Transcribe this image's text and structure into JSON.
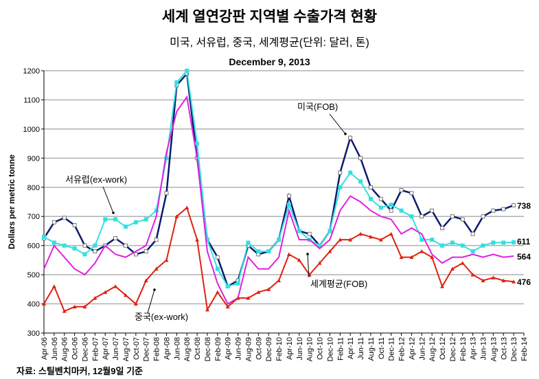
{
  "chart_data": {
    "type": "line",
    "title": "세계 열연강판 지역별 수출가격 현황",
    "subtitle": "미국, 서유럽, 중국, 세계평균(단위: 달러, 톤)",
    "date": "December 9, 2013",
    "ylabel": "Dollars per metric tonne",
    "xlabel": "",
    "ylim": [
      300,
      1200
    ],
    "yticks": [
      300,
      400,
      500,
      600,
      700,
      800,
      900,
      1000,
      1100,
      1200
    ],
    "xticks": [
      "Apr-06",
      "Jun-06",
      "Aug-06",
      "Oct-06",
      "Dec-06",
      "Feb-07",
      "Apr-07",
      "Jun-07",
      "Aug-07",
      "Oct-07",
      "Dec-07",
      "Feb-08",
      "Apr-08",
      "Jun-08",
      "Aug-08",
      "Oct-08",
      "Dec-08",
      "Feb-09",
      "Apr-09",
      "Jun-09",
      "Aug-09",
      "Oct-09",
      "Dec-09",
      "Feb-10",
      "Apr-10",
      "Jun-10",
      "Aug-10",
      "Oct-10",
      "Dec-10",
      "Feb-11",
      "Apr-11",
      "Jun-11",
      "Aug-11",
      "Oct-11",
      "Dec-11",
      "Feb-12",
      "Apr-12",
      "Jun-12",
      "Aug-12",
      "Oct-12",
      "Dec-12",
      "Feb-13",
      "Apr-13",
      "Jun-13",
      "Aug-13",
      "Oct-13",
      "Dec-13",
      "Feb-14"
    ],
    "grid": true,
    "series": [
      {
        "name": "미국(FOB)",
        "color": "#0a1a6e",
        "end_label": "738",
        "values": [
          625,
          680,
          695,
          670,
          600,
          580,
          600,
          625,
          600,
          570,
          580,
          620,
          780,
          1150,
          1190,
          900,
          620,
          560,
          460,
          480,
          600,
          570,
          580,
          620,
          770,
          650,
          640,
          600,
          650,
          850,
          970,
          900,
          800,
          760,
          720,
          790,
          780,
          700,
          720,
          660,
          700,
          690,
          640,
          700,
          720,
          725,
          738
        ]
      },
      {
        "name": "서유럽(ex-work)",
        "color": "#33e0e0",
        "end_label": "611",
        "values": [
          630,
          610,
          600,
          590,
          570,
          600,
          690,
          690,
          665,
          680,
          690,
          720,
          900,
          1160,
          1200,
          950,
          620,
          520,
          460,
          470,
          610,
          580,
          580,
          620,
          740,
          650,
          620,
          600,
          650,
          800,
          850,
          820,
          760,
          730,
          740,
          720,
          700,
          620,
          620,
          600,
          610,
          600,
          580,
          600,
          610,
          610,
          611
        ]
      },
      {
        "name": "세계평균(FOB)",
        "color": "#e020e0",
        "end_label": "564",
        "values": [
          520,
          600,
          560,
          520,
          500,
          540,
          600,
          570,
          560,
          580,
          600,
          700,
          920,
          1060,
          1110,
          900,
          580,
          470,
          400,
          420,
          560,
          520,
          520,
          560,
          720,
          620,
          620,
          590,
          620,
          720,
          770,
          750,
          720,
          700,
          690,
          640,
          660,
          640,
          570,
          540,
          560,
          560,
          570,
          560,
          570,
          560,
          564
        ]
      },
      {
        "name": "중국(ex-work)",
        "color": "#e02010",
        "end_label": "476",
        "values": [
          400,
          460,
          375,
          390,
          390,
          420,
          440,
          460,
          430,
          400,
          480,
          520,
          550,
          700,
          730,
          620,
          380,
          440,
          390,
          420,
          420,
          440,
          450,
          480,
          570,
          550,
          500,
          540,
          580,
          620,
          620,
          640,
          630,
          620,
          640,
          560,
          560,
          580,
          560,
          460,
          520,
          540,
          500,
          480,
          490,
          480,
          476
        ]
      }
    ],
    "source": "자료: 스틸벤치마커, 12월9일 기준"
  }
}
